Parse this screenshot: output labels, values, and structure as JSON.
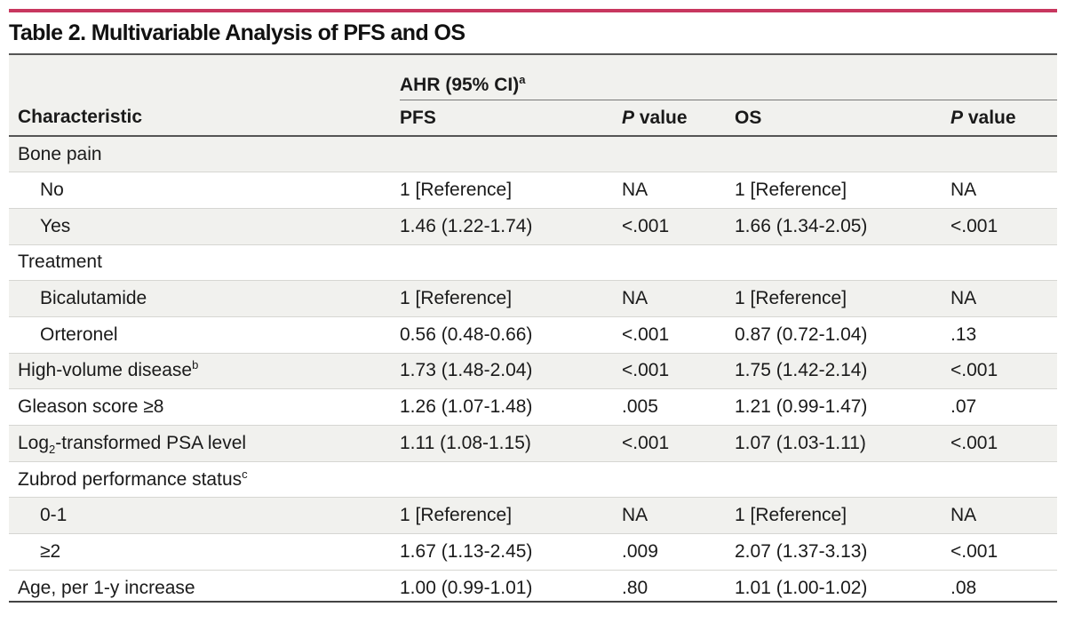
{
  "title": "Table 2. Multivariable Analysis of PFS and OS",
  "header": {
    "group_label": "AHR (95% CI)",
    "group_footnote": "a",
    "columns": {
      "characteristic": "Characteristic",
      "pfs": "PFS",
      "pfs_p_italic": "P",
      "pfs_p_rest": " value",
      "os": "OS",
      "os_p_italic": "P",
      "os_p_rest": " value"
    }
  },
  "rows": [
    {
      "label": "Bone pain",
      "pfs": "",
      "pfs_p": "",
      "os": "",
      "os_p": ""
    },
    {
      "label": "No",
      "pfs": "1 [Reference]",
      "pfs_p": "NA",
      "os": "1 [Reference]",
      "os_p": "NA"
    },
    {
      "label": "Yes",
      "pfs": "1.46 (1.22-1.74)",
      "pfs_p": "<.001",
      "os": "1.66 (1.34-2.05)",
      "os_p": "<.001"
    },
    {
      "label": "Treatment",
      "pfs": "",
      "pfs_p": "",
      "os": "",
      "os_p": ""
    },
    {
      "label": "Bicalutamide",
      "pfs": "1 [Reference]",
      "pfs_p": "NA",
      "os": "1 [Reference]",
      "os_p": "NA"
    },
    {
      "label": "Orteronel",
      "pfs": "0.56 (0.48-0.66)",
      "pfs_p": "<.001",
      "os": "0.87 (0.72-1.04)",
      "os_p": ".13"
    },
    {
      "label": "High-volume disease",
      "footnote": "b",
      "pfs": "1.73 (1.48-2.04)",
      "pfs_p": "<.001",
      "os": "1.75 (1.42-2.14)",
      "os_p": "<.001"
    },
    {
      "label": "Gleason score ≥8",
      "pfs": "1.26 (1.07-1.48)",
      "pfs_p": ".005",
      "os": "1.21 (0.99-1.47)",
      "os_p": ".07"
    },
    {
      "label_pre": "Log",
      "label_sub": "2",
      "label_post": "-transformed PSA level",
      "pfs": "1.11 (1.08-1.15)",
      "pfs_p": "<.001",
      "os": "1.07 (1.03-1.11)",
      "os_p": "<.001"
    },
    {
      "label": "Zubrod performance status",
      "footnote": "c",
      "pfs": "",
      "pfs_p": "",
      "os": "",
      "os_p": ""
    },
    {
      "label": "0-1",
      "pfs": "1 [Reference]",
      "pfs_p": "NA",
      "os": "1 [Reference]",
      "os_p": "NA"
    },
    {
      "label": "≥2",
      "pfs": "1.67 (1.13-2.45)",
      "pfs_p": ".009",
      "os": "2.07 (1.37-3.13)",
      "os_p": "<.001"
    },
    {
      "label": "Age, per 1-y increase",
      "pfs": "1.00 (0.99-1.01)",
      "pfs_p": ".80",
      "os": "1.01 (1.00-1.02)",
      "os_p": ".08"
    }
  ]
}
